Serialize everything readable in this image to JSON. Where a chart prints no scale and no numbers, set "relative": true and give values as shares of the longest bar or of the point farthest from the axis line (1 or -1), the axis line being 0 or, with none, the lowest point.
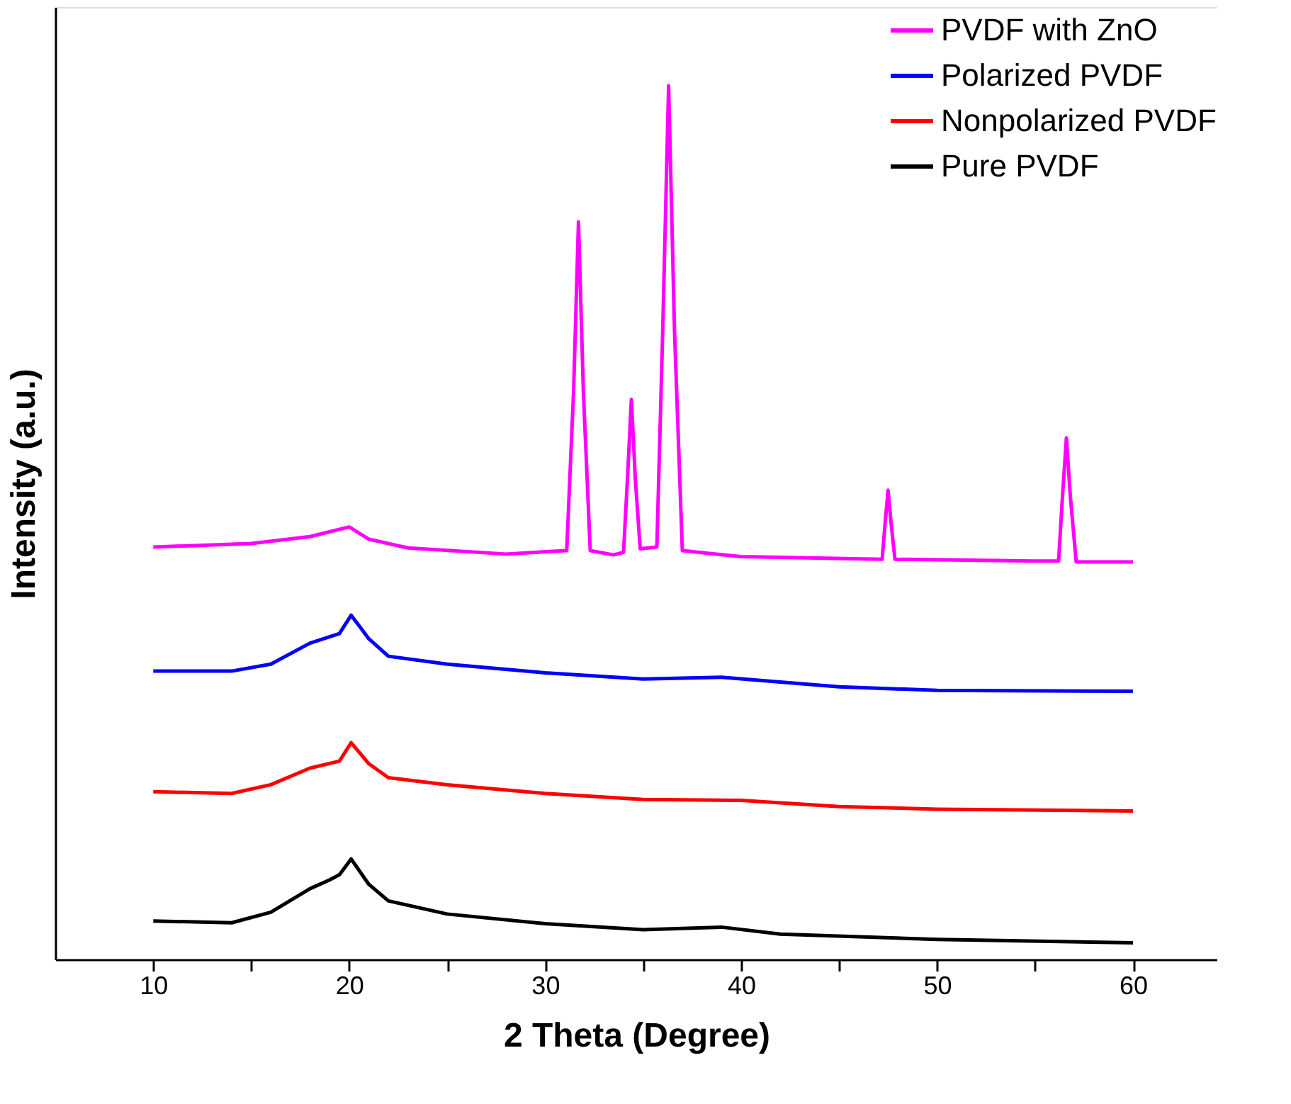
{
  "chart_data": {
    "type": "line",
    "xlabel": "2 Theta (Degree)",
    "ylabel": "Intensity (a.u.)",
    "relative": true,
    "legend": "top right",
    "grid": false,
    "xlim": [
      5,
      64.3
    ],
    "xticks": [
      10,
      {
        "value": 15,
        "label": null
      },
      20,
      {
        "value": 25,
        "label": null
      },
      30,
      {
        "value": 35,
        "label": null
      },
      40,
      {
        "value": 45,
        "label": null
      },
      50,
      {
        "value": 55,
        "label": null
      },
      60
    ],
    "series": [
      {
        "name": "PVDF with ZnO",
        "color": "#ff00ff",
        "x": [
          10,
          15,
          18,
          20,
          21,
          23,
          28,
          31.1,
          31.45,
          31.7,
          31.95,
          32.3,
          33.5,
          34.0,
          34.2,
          34.4,
          34.6,
          34.85,
          35.7,
          36.0,
          36.3,
          36.6,
          37.0,
          40,
          47.2,
          47.35,
          47.5,
          47.65,
          47.85,
          55,
          56.2,
          56.4,
          56.6,
          56.8,
          57.1,
          60
        ],
        "values": [
          0.472,
          0.476,
          0.484,
          0.495,
          0.481,
          0.471,
          0.464,
          0.468,
          0.65,
          0.844,
          0.65,
          0.468,
          0.463,
          0.466,
          0.55,
          0.641,
          0.55,
          0.47,
          0.472,
          0.72,
          1.0,
          0.72,
          0.468,
          0.461,
          0.458,
          0.5,
          0.537,
          0.5,
          0.458,
          0.456,
          0.456,
          0.53,
          0.597,
          0.53,
          0.455,
          0.455
        ]
      },
      {
        "name": "Polarized PVDF",
        "color": "#0000ff",
        "x": [
          10,
          14,
          16,
          18,
          19.5,
          20.1,
          21,
          22,
          25,
          30,
          35,
          39,
          45,
          50,
          60
        ],
        "values": [
          0.33,
          0.33,
          0.338,
          0.362,
          0.373,
          0.394,
          0.367,
          0.347,
          0.338,
          0.328,
          0.321,
          0.323,
          0.312,
          0.308,
          0.307
        ]
      },
      {
        "name": "Nonpolarized PVDF",
        "color": "#ff0000",
        "x": [
          10,
          14,
          16,
          18,
          19.5,
          20.1,
          21,
          22,
          25,
          30,
          35,
          40,
          45,
          50,
          60
        ],
        "values": [
          0.192,
          0.19,
          0.2,
          0.219,
          0.227,
          0.248,
          0.224,
          0.208,
          0.2,
          0.19,
          0.183,
          0.182,
          0.175,
          0.172,
          0.17
        ]
      },
      {
        "name": "Pure PVDF",
        "color": "#000000",
        "x": [
          10,
          14,
          16,
          18,
          19,
          19.5,
          20.1,
          21,
          22,
          25,
          30,
          35,
          39,
          42,
          50,
          60
        ],
        "values": [
          0.044,
          0.042,
          0.054,
          0.081,
          0.091,
          0.097,
          0.115,
          0.086,
          0.067,
          0.052,
          0.041,
          0.034,
          0.037,
          0.029,
          0.023,
          0.019
        ]
      }
    ]
  }
}
